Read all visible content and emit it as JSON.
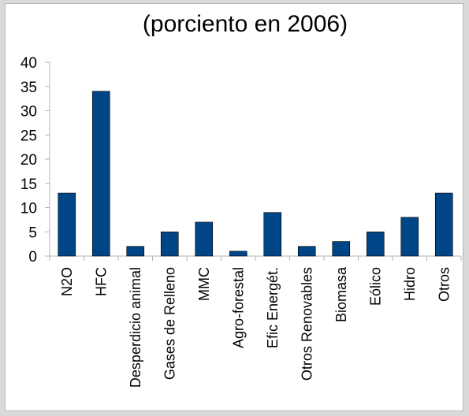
{
  "chart_data": {
    "type": "bar",
    "title": "(porciento en 2006)",
    "categories": [
      "N2O",
      "HFC",
      "Desperdicio animal",
      "Gases de Relleno",
      "MMC",
      "Agro-forestal",
      "Efic Energét.",
      "Otros Renovables",
      "Biomasa",
      "Eólico",
      "Hidro",
      "Otros"
    ],
    "values": [
      13,
      34,
      2,
      5,
      7,
      1,
      9,
      2,
      3,
      5,
      8,
      13
    ],
    "ylim": [
      0,
      40
    ],
    "yticks": [
      0,
      5,
      10,
      15,
      20,
      25,
      30,
      35,
      40
    ],
    "xlabel": "",
    "ylabel": "",
    "grid": false,
    "bar_color": "#004586"
  }
}
